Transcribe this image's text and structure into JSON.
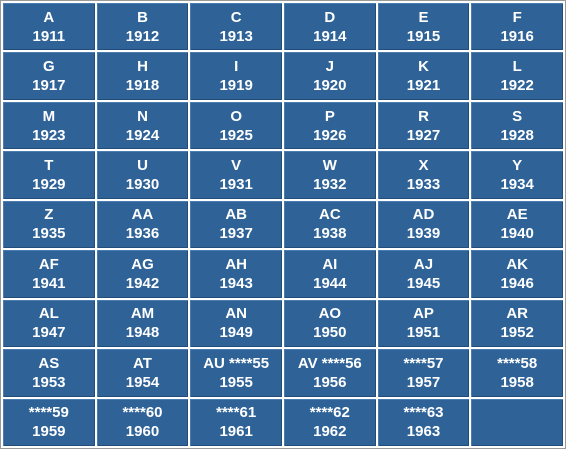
{
  "cells": [
    {
      "code": "A",
      "year": "1911"
    },
    {
      "code": "B",
      "year": "1912"
    },
    {
      "code": "C",
      "year": "1913"
    },
    {
      "code": "D",
      "year": "1914"
    },
    {
      "code": "E",
      "year": "1915"
    },
    {
      "code": "F",
      "year": "1916"
    },
    {
      "code": "G",
      "year": "1917"
    },
    {
      "code": "H",
      "year": "1918"
    },
    {
      "code": "I",
      "year": "1919"
    },
    {
      "code": "J",
      "year": "1920"
    },
    {
      "code": "K",
      "year": "1921"
    },
    {
      "code": "L",
      "year": "1922"
    },
    {
      "code": "M",
      "year": "1923"
    },
    {
      "code": "N",
      "year": "1924"
    },
    {
      "code": "O",
      "year": "1925"
    },
    {
      "code": "P",
      "year": "1926"
    },
    {
      "code": "R",
      "year": "1927"
    },
    {
      "code": "S",
      "year": "1928"
    },
    {
      "code": "T",
      "year": "1929"
    },
    {
      "code": "U",
      "year": "1930"
    },
    {
      "code": "V",
      "year": "1931"
    },
    {
      "code": "W",
      "year": "1932"
    },
    {
      "code": "X",
      "year": "1933"
    },
    {
      "code": "Y",
      "year": "1934"
    },
    {
      "code": "Z",
      "year": "1935"
    },
    {
      "code": "AA",
      "year": "1936"
    },
    {
      "code": "AB",
      "year": "1937"
    },
    {
      "code": "AC",
      "year": "1938"
    },
    {
      "code": "AD",
      "year": "1939"
    },
    {
      "code": "AE",
      "year": "1940"
    },
    {
      "code": "AF",
      "year": "1941"
    },
    {
      "code": "AG",
      "year": "1942"
    },
    {
      "code": "AH",
      "year": "1943"
    },
    {
      "code": "AI",
      "year": "1944"
    },
    {
      "code": "AJ",
      "year": "1945"
    },
    {
      "code": "AK",
      "year": "1946"
    },
    {
      "code": "AL",
      "year": "1947"
    },
    {
      "code": "AM",
      "year": "1948"
    },
    {
      "code": "AN",
      "year": "1949"
    },
    {
      "code": "AO",
      "year": "1950"
    },
    {
      "code": "AP",
      "year": "1951"
    },
    {
      "code": "AR",
      "year": "1952"
    },
    {
      "code": "AS",
      "year": "1953"
    },
    {
      "code": "AT",
      "year": "1954"
    },
    {
      "code": "AU ****55",
      "year": "1955"
    },
    {
      "code": "AV ****56",
      "year": "1956"
    },
    {
      "code": "****57",
      "year": "1957"
    },
    {
      "code": "****58",
      "year": "1958"
    },
    {
      "code": "****59",
      "year": "1959"
    },
    {
      "code": "****60",
      "year": "1960"
    },
    {
      "code": "****61",
      "year": "1961"
    },
    {
      "code": "****62",
      "year": "1962"
    },
    {
      "code": "****63",
      "year": "1963"
    },
    {
      "code": "",
      "year": ""
    }
  ],
  "colors": {
    "cell_background": "#2f6398",
    "text": "#ffffff",
    "grid_line": "#ffffff"
  }
}
